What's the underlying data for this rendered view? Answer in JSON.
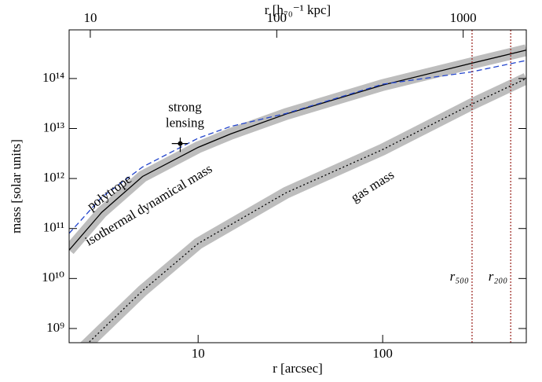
{
  "chart_data": {
    "type": "line",
    "xlabel": "r  [arcsec]",
    "ylabel": "mass [solar units]",
    "x2label": "r [h₇₀⁻¹ kpc]",
    "xscale": "log",
    "yscale": "log",
    "xlim": [
      2,
      600
    ],
    "ylim": [
      520000000,
      940000000000000
    ],
    "x2lim": [
      7.7,
      2180
    ],
    "xticks": [
      10,
      100
    ],
    "x2ticks": [
      10,
      100,
      1000
    ],
    "yticks": [
      {
        "value": 1000000000,
        "label": "10⁹"
      },
      {
        "value": 10000000000,
        "label": "10¹⁰"
      },
      {
        "value": 100000000000,
        "label": "10¹¹"
      },
      {
        "value": 1000000000000,
        "label": "10¹²"
      },
      {
        "value": 10000000000000,
        "label": "10¹³"
      },
      {
        "value": 100000000000000,
        "label": "10¹⁴"
      }
    ],
    "series": [
      {
        "name": "isothermal dynamical mass",
        "color": "#000000",
        "style": "solid",
        "band": true,
        "x": [
          2,
          3,
          5,
          10,
          15,
          30,
          100,
          300,
          600
        ],
        "values": [
          37000000000,
          210000000000,
          1100000000000,
          4200000000000,
          7800000000000,
          19500000000000,
          74000000000000,
          200000000000000,
          370000000000000
        ]
      },
      {
        "name": "polytrope",
        "color": "#2244cc",
        "style": "dashed",
        "band": false,
        "x": [
          2,
          3,
          5,
          10,
          15,
          30,
          100,
          300,
          600
        ],
        "values": [
          80000000000,
          420000000000,
          1700000000000,
          6400000000000,
          11000000000000,
          20000000000000,
          77000000000000,
          135000000000000,
          230000000000000
        ]
      },
      {
        "name": "gas mass",
        "color": "#000000",
        "style": "dotted",
        "band": true,
        "x": [
          2.4,
          3,
          5,
          10,
          30,
          100,
          300,
          600
        ],
        "values": [
          420000000,
          930000000,
          5700000000,
          50000000000,
          520000000000,
          3800000000000,
          30000000000000,
          100000000000000
        ]
      }
    ],
    "lensing_point": {
      "label_lines": [
        "strong",
        "lensing"
      ],
      "x": 8,
      "y": 5000000000000,
      "xerr": 0.8,
      "yerr": 1600000000000
    },
    "vlines": [
      {
        "x": 305,
        "label": "r₅₀₀",
        "color": "#a0302a"
      },
      {
        "x": 494,
        "label": "r₂₀₀",
        "color": "#a0302a"
      }
    ]
  }
}
